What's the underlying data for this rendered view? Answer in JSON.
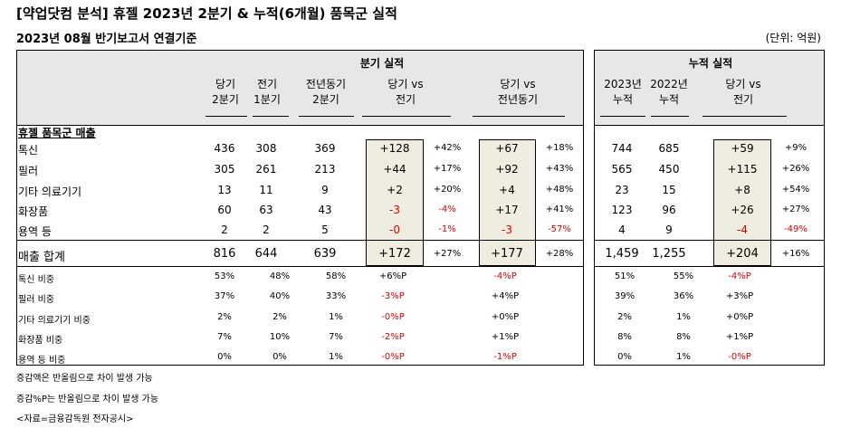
{
  "title": "[약업닷컴 분석] 휴젤 2023년 2분기 & 누적(6개월) 품목군 실적",
  "subtitle": "2023년 08월 반기보고서 연결기준",
  "unit": "(단위: 억원)",
  "left_header": "분기 실적",
  "right_header": "누적 실적",
  "left_cols": [
    "당기\n2분기",
    "전기\n1분기",
    "전년동기\n2분기",
    "당기 vs\n전기",
    "당기 vs\n전년동기"
  ],
  "right_cols": [
    "2023년\n누적",
    "2022년\n누적",
    "당기 vs\n전기"
  ],
  "section_label": "휴젤 품목군 매출",
  "rows": [
    {
      "label": "톡신",
      "q2": "436",
      "q1": "308",
      "py": "369",
      "vq": "+128",
      "vqp": "+42%",
      "vy": "+67",
      "vyp": "+18%",
      "c23": "744",
      "c22": "685",
      "vc": "+59",
      "vcp": "+9%"
    },
    {
      "label": "필러",
      "q2": "305",
      "q1": "261",
      "py": "213",
      "vq": "+44",
      "vqp": "+17%",
      "vy": "+92",
      "vyp": "+43%",
      "c23": "565",
      "c22": "450",
      "vc": "+115",
      "vcp": "+26%"
    },
    {
      "label": "기타 의료기기",
      "q2": "13",
      "q1": "11",
      "py": "9",
      "vq": "+2",
      "vqp": "+20%",
      "vy": "+4",
      "vyp": "+48%",
      "c23": "23",
      "c22": "15",
      "vc": "+8",
      "vcp": "+54%"
    },
    {
      "label": "화장품",
      "q2": "60",
      "q1": "63",
      "py": "43",
      "vq": "-3",
      "vqp": "-4%",
      "vy": "+17",
      "vyp": "+41%",
      "c23": "123",
      "c22": "96",
      "vc": "+26",
      "vcp": "+27%"
    },
    {
      "label": "용역 등",
      "q2": "2",
      "q1": "2",
      "py": "5",
      "vq": "-0",
      "vqp": "-1%",
      "vy": "-3",
      "vyp": "-57%",
      "c23": "4",
      "c22": "9",
      "vc": "-4",
      "vcp": "-49%"
    }
  ],
  "total": {
    "label": "매출 합계",
    "q2": "816",
    "q1": "644",
    "py": "639",
    "vq": "+172",
    "vqp": "+27%",
    "vy": "+177",
    "vyp": "+28%",
    "c23": "1,459",
    "c22": "1,255",
    "vc": "+204",
    "vcp": "+16%"
  },
  "ratios": [
    {
      "label": "톡신 비중",
      "q2": "53%",
      "q1": "48%",
      "py": "58%",
      "vq": "+6%P",
      "vy": "-4%P",
      "c23": "51%",
      "c22": "55%",
      "vc": "-4%P"
    },
    {
      "label": "필러 비중",
      "q2": "37%",
      "q1": "40%",
      "py": "33%",
      "vq": "-3%P",
      "vy": "+4%P",
      "c23": "39%",
      "c22": "36%",
      "vc": "+3%P"
    },
    {
      "label": "기타 의료기기 비중",
      "q2": "2%",
      "q1": "2%",
      "py": "1%",
      "vq": "-0%P",
      "vy": "+0%P",
      "c23": "2%",
      "c22": "1%",
      "vc": "+0%P"
    },
    {
      "label": "화장품 비중",
      "q2": "7%",
      "q1": "10%",
      "py": "7%",
      "vq": "-2%P",
      "vy": "+1%P",
      "c23": "8%",
      "c22": "8%",
      "vc": "+1%P"
    },
    {
      "label": "용역 등 비중",
      "q2": "0%",
      "q1": "0%",
      "py": "1%",
      "vq": "-0%P",
      "vy": "-1%P",
      "c23": "0%",
      "c22": "1%",
      "vc": "-0%P"
    }
  ],
  "notes": [
    "증감액은 반올림으로 차이 발생 가능",
    "증감%P는 반올림으로 차이 발생 가능",
    "<자료=금융감독원 전자공시>"
  ],
  "colors": {
    "header_bg": "#e7e7e7",
    "shade_bg": "#efece0",
    "negative": "#e00000"
  }
}
